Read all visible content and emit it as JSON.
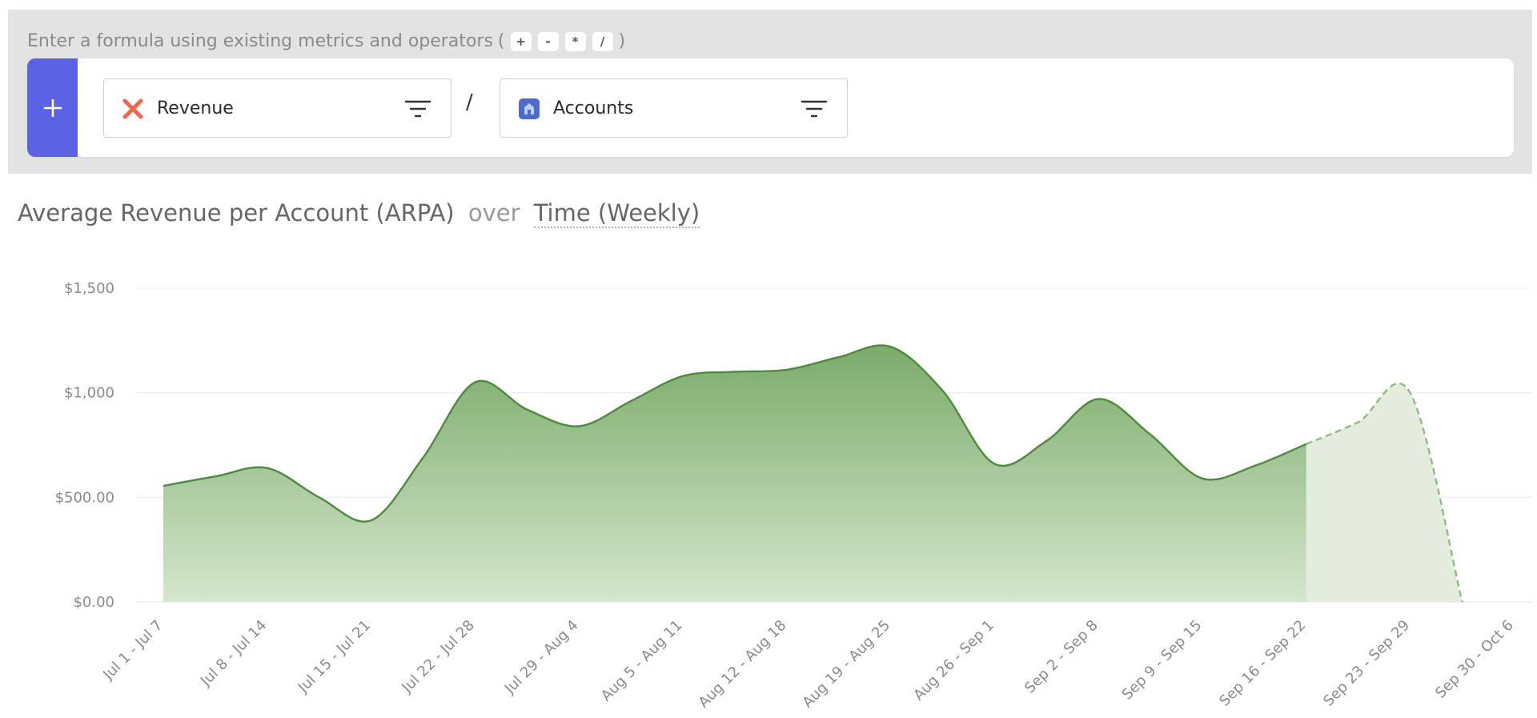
{
  "formula": {
    "hint": "Enter a formula using existing metrics and operators",
    "open_paren": "(",
    "close_paren": ")",
    "operators": [
      "+",
      "-",
      "*",
      "/"
    ],
    "add_label": "+",
    "metric_a": {
      "label": "Revenue",
      "icon": "revenue-icon",
      "color": "#f2674a"
    },
    "operator": "/",
    "metric_b": {
      "label": "Accounts",
      "icon": "accounts-icon",
      "color": "#4d6bcf"
    }
  },
  "title": {
    "metric": "Average Revenue per Account (ARPA)",
    "connector": "over",
    "dimension": "Time (Weekly)"
  },
  "chart_data": {
    "type": "area",
    "categories": [
      "Jul 1 - Jul 7",
      "Jul 8 - Jul 14",
      "Jul 15 - Jul 21",
      "Jul 22 - Jul 28",
      "Jul 29 - Aug 4",
      "Aug 5 - Aug 11",
      "Aug 12 - Aug 18",
      "Aug 19 - Aug 25",
      "Aug 26 - Sep 1",
      "Sep 2 - Sep 8",
      "Sep 9 - Sep 15",
      "Sep 16 - Sep 22",
      "Sep 23 - Sep 29",
      "Sep 30 - Oct 6"
    ],
    "series": [
      {
        "values": [
          555,
          600,
          640,
          500,
          390,
          690,
          1050,
          920,
          840,
          960,
          1080,
          1100,
          1110,
          1170,
          1220,
          1010,
          660,
          770,
          970,
          800,
          590,
          650,
          755,
          860,
          1000,
          0
        ],
        "x": [
          0,
          0.5,
          1,
          1.5,
          2,
          2.5,
          3,
          3.5,
          4,
          4.5,
          5,
          5.5,
          6,
          6.5,
          7,
          7.5,
          8,
          8.5,
          9,
          9.5,
          10,
          10.5,
          11,
          11.5,
          12,
          12.5
        ],
        "actual_through_index": 22
      }
    ],
    "ylabel": "",
    "xlabel": "",
    "yticks": [
      "$0.00",
      "$500.00",
      "$1,000",
      "$1,500"
    ],
    "ytick_values": [
      0,
      500,
      1000,
      1500
    ],
    "ylim": [
      0,
      1500
    ],
    "grid": true,
    "colors": {
      "line": "#4e8a3e",
      "fill_top": "#7aab6a",
      "fill_bottom": "#d5e6cd",
      "forecast_fill": "#e3ecdd",
      "forecast_line": "#8fbb80"
    }
  }
}
